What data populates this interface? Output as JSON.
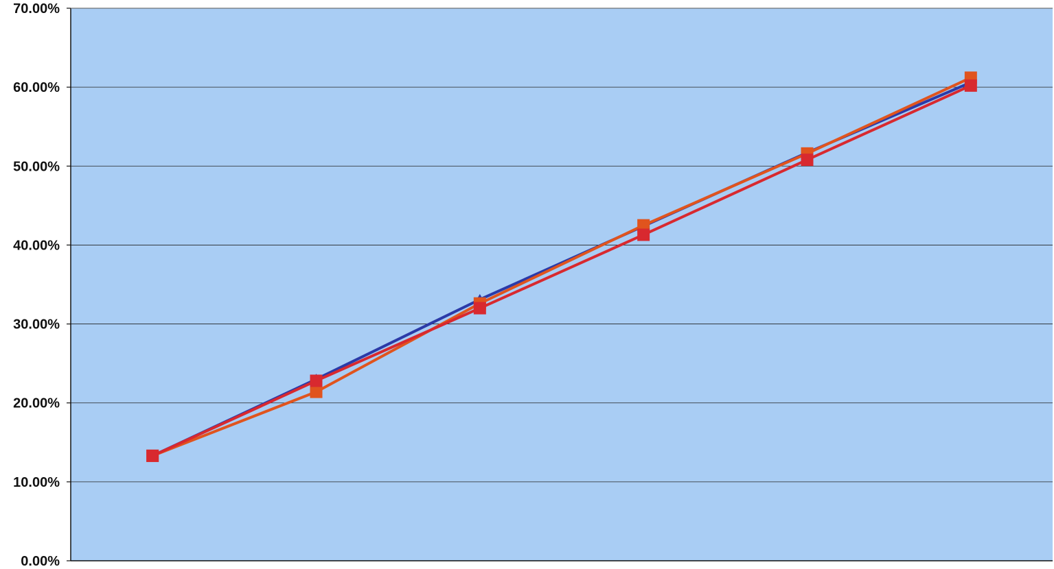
{
  "chart_data": {
    "type": "line",
    "title": "",
    "xlabel": "",
    "ylabel": "",
    "ylim": [
      0,
      70
    ],
    "y_ticks": [
      {
        "value": 0,
        "label": "0.00%"
      },
      {
        "value": 10,
        "label": "10.00%"
      },
      {
        "value": 20,
        "label": "20.00%"
      },
      {
        "value": 30,
        "label": "30.00%"
      },
      {
        "value": 40,
        "label": "40.00%"
      },
      {
        "value": 50,
        "label": "50.00%"
      },
      {
        "value": 60,
        "label": "60.00%"
      },
      {
        "value": 70,
        "label": "70.00%"
      }
    ],
    "x": [
      1,
      2,
      3,
      4,
      5,
      6
    ],
    "grid": true,
    "legend": "none",
    "plot_background": "#a9cdf4",
    "series": [
      {
        "color": "#2b3aa8",
        "marker": "triangle",
        "values": [
          13.3,
          23.0,
          33.1,
          42.4,
          51.7,
          60.6
        ]
      },
      {
        "color": "#e0541e",
        "marker": "square",
        "values": [
          13.3,
          21.4,
          32.6,
          42.5,
          51.6,
          61.2
        ]
      },
      {
        "color": "#d8292f",
        "marker": "square",
        "values": [
          13.3,
          22.8,
          32.0,
          41.3,
          50.8,
          60.2
        ]
      }
    ]
  }
}
